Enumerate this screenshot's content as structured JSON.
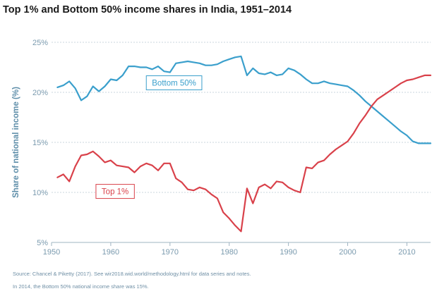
{
  "chart_data": {
    "type": "line",
    "title": "Top 1% and Bottom 50% income shares in India, 1951–2014",
    "xlabel": "",
    "ylabel": "Share of national income (%)",
    "xlim": [
      1950,
      2014
    ],
    "ylim": [
      5,
      25
    ],
    "xticks": [
      1950,
      1960,
      1970,
      1980,
      1990,
      2000,
      2010
    ],
    "xtick_labels": [
      "1950",
      "1960",
      "1970",
      "1980",
      "1990",
      "2000",
      "2010"
    ],
    "yticks": [
      5,
      10,
      15,
      20,
      25
    ],
    "ytick_labels": [
      "5%",
      "10%",
      "15%",
      "20%",
      "25%"
    ],
    "series": [
      {
        "name": "Bottom 50%",
        "color": "#3a9fcc",
        "label_anchor": [
          1966,
          20.95
        ],
        "x": [
          1951,
          1952,
          1953,
          1954,
          1955,
          1956,
          1957,
          1958,
          1959,
          1960,
          1961,
          1962,
          1963,
          1964,
          1965,
          1966,
          1967,
          1968,
          1969,
          1970,
          1971,
          1972,
          1973,
          1974,
          1975,
          1976,
          1977,
          1978,
          1979,
          1980,
          1981,
          1982,
          1983,
          1984,
          1985,
          1986,
          1987,
          1988,
          1989,
          1990,
          1991,
          1992,
          1993,
          1994,
          1995,
          1996,
          1997,
          1998,
          1999,
          2000,
          2001,
          2002,
          2003,
          2004,
          2005,
          2006,
          2007,
          2008,
          2009,
          2010,
          2011,
          2012,
          2013,
          2014
        ],
        "values": [
          20.5,
          20.7,
          21.1,
          20.4,
          19.2,
          19.6,
          20.6,
          20.1,
          20.6,
          21.3,
          21.2,
          21.7,
          22.6,
          22.6,
          22.5,
          22.5,
          22.3,
          22.6,
          22.1,
          22.0,
          22.9,
          23.0,
          23.1,
          23.0,
          22.9,
          22.7,
          22.7,
          22.8,
          23.1,
          23.3,
          23.5,
          23.6,
          21.7,
          22.4,
          21.9,
          21.8,
          22.0,
          21.7,
          21.8,
          22.4,
          22.2,
          21.8,
          21.3,
          20.9,
          20.9,
          21.1,
          20.9,
          20.8,
          20.7,
          20.6,
          20.2,
          19.7,
          19.1,
          18.6,
          18.1,
          17.6,
          17.1,
          16.6,
          16.1,
          15.7,
          15.1,
          14.9,
          14.9,
          14.9
        ]
      },
      {
        "name": "Top 1%",
        "color": "#d9414a",
        "label_anchor": [
          1957.5,
          10.1
        ],
        "x": [
          1951,
          1952,
          1953,
          1954,
          1955,
          1956,
          1957,
          1958,
          1959,
          1960,
          1961,
          1962,
          1963,
          1964,
          1965,
          1966,
          1967,
          1968,
          1969,
          1970,
          1971,
          1972,
          1973,
          1974,
          1975,
          1976,
          1977,
          1978,
          1979,
          1980,
          1981,
          1982,
          1983,
          1984,
          1985,
          1986,
          1987,
          1988,
          1989,
          1990,
          1991,
          1992,
          1993,
          1994,
          1995,
          1996,
          1997,
          1998,
          1999,
          2000,
          2001,
          2002,
          2003,
          2004,
          2005,
          2006,
          2007,
          2008,
          2009,
          2010,
          2011,
          2012,
          2013,
          2014
        ],
        "values": [
          11.5,
          11.8,
          11.1,
          12.6,
          13.7,
          13.8,
          14.1,
          13.6,
          13.0,
          13.2,
          12.7,
          12.6,
          12.5,
          12.0,
          12.6,
          12.9,
          12.7,
          12.2,
          12.9,
          12.9,
          11.4,
          11.0,
          10.3,
          10.2,
          10.5,
          10.3,
          9.8,
          9.4,
          8.0,
          7.4,
          6.7,
          6.1,
          10.4,
          8.9,
          10.5,
          10.8,
          10.4,
          11.1,
          11.0,
          10.5,
          10.2,
          10.0,
          12.5,
          12.4,
          13.0,
          13.2,
          13.8,
          14.3,
          14.7,
          15.1,
          15.9,
          16.9,
          17.7,
          18.6,
          19.3,
          19.7,
          20.1,
          20.5,
          20.9,
          21.2,
          21.3,
          21.5,
          21.7,
          21.7
        ]
      }
    ]
  },
  "footnotes": {
    "source": "Source: Chancel & Piketty (2017). See wir2018.wid.world/methodology.html for data series and notes.",
    "note": "In 2014, the Bottom 50% national income share was 15%."
  }
}
